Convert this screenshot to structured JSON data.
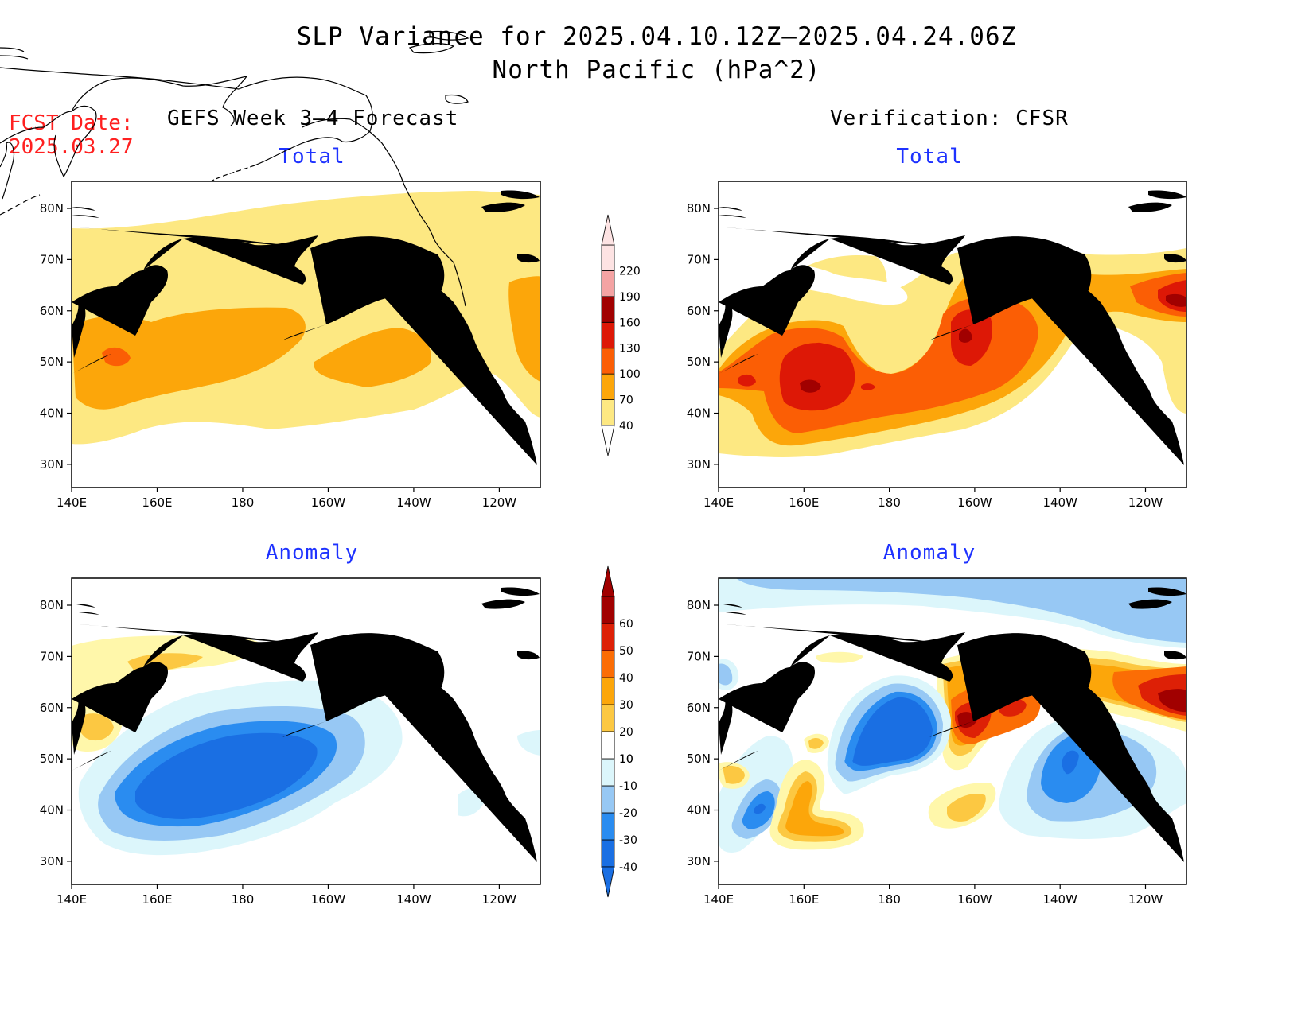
{
  "header": {
    "title_line1": "SLP Variance for 2025.04.10.12Z–2025.04.24.06Z",
    "title_line2": "North Pacific (hPa^2)",
    "fcst_label": "FCST Date:",
    "fcst_date": "2025.03.27",
    "left_column": "GEFS Week 3–4 Forecast",
    "right_column": "Verification: CFSR"
  },
  "panels": {
    "fcst_total_title": "Total",
    "fcst_anom_title": "Anomaly",
    "verif_total_title": "Total",
    "verif_anom_title": "Anomaly"
  },
  "axes": {
    "x_ticks": [
      "140E",
      "160E",
      "180",
      "160W",
      "140W",
      "120W"
    ],
    "y_ticks": [
      "80N",
      "70N",
      "60N",
      "50N",
      "40N",
      "30N"
    ]
  },
  "colors": {
    "total": {
      "40": "#fde882",
      "70": "#fca60a",
      "100": "#fb5e05",
      "130": "#dd1806",
      "160": "#a10000",
      "190": "#f4a3a3",
      "220": "#fde3e3"
    },
    "anomaly": {
      "-40": "#1a6fe3",
      "-30": "#2a8cf0",
      "-20": "#97c8f4",
      "-10": "#dcf6fb",
      "10": "#fff7aa",
      "20": "#fcc842",
      "30": "#fca60a",
      "40": "#fb6d05",
      "50": "#dd2006",
      "60": "#a10000"
    }
  },
  "chart_data": [
    {
      "type": "heatmap",
      "title": "Total",
      "panel": "GEFS Week 3–4 Forecast",
      "x_range": [
        "140E",
        "110W"
      ],
      "y_range": [
        "25N",
        "85N"
      ],
      "regions": [
        {
          "level": 40,
          "center": [
            "170E",
            "55N"
          ],
          "note": "broad basin-wide field"
        },
        {
          "level": 70,
          "center": [
            "170E",
            "50N"
          ]
        },
        {
          "level": 70,
          "center": [
            "150W",
            "50N"
          ]
        },
        {
          "level": 100,
          "center": [
            "149E",
            "50N"
          ]
        }
      ]
    },
    {
      "type": "heatmap",
      "title": "Anomaly",
      "panel": "GEFS Week 3–4 Forecast",
      "x_range": [
        "140E",
        "110W"
      ],
      "y_range": [
        "25N",
        "85N"
      ],
      "regions": [
        {
          "level": -40,
          "center": [
            "175E",
            "46N"
          ]
        },
        {
          "level": 20,
          "center": [
            "144E",
            "56N"
          ]
        },
        {
          "level": 10,
          "center": [
            "160E",
            "70N"
          ]
        }
      ]
    },
    {
      "type": "heatmap",
      "title": "Total",
      "panel": "Verification: CFSR",
      "x_range": [
        "140E",
        "110W"
      ],
      "y_range": [
        "25N",
        "85N"
      ],
      "regions": [
        {
          "level": 160,
          "center": [
            "160E",
            "45N"
          ]
        },
        {
          "level": 160,
          "center": [
            "160W",
            "55N"
          ]
        },
        {
          "level": 160,
          "center": [
            "113W",
            "61N"
          ]
        },
        {
          "level": 130,
          "center": [
            "165E",
            "48N"
          ]
        },
        {
          "level": 100,
          "center": [
            "170W",
            "50N"
          ]
        }
      ]
    },
    {
      "type": "heatmap",
      "title": "Anomaly",
      "panel": "Verification: CFSR",
      "x_range": [
        "140E",
        "110W"
      ],
      "y_range": [
        "25N",
        "85N"
      ],
      "regions": [
        {
          "level": 60,
          "center": [
            "162W",
            "56N"
          ]
        },
        {
          "level": 60,
          "center": [
            "113W",
            "60N"
          ]
        },
        {
          "level": -40,
          "center": [
            "177E",
            "53N"
          ]
        },
        {
          "level": -40,
          "center": [
            "137W",
            "48N"
          ]
        },
        {
          "level": -30,
          "center": [
            "149E",
            "40N"
          ]
        },
        {
          "level": 30,
          "center": [
            "160E",
            "37N"
          ]
        },
        {
          "level": -20,
          "center": [
            "170W",
            "83N"
          ]
        }
      ]
    }
  ],
  "colorbars": {
    "total_labels": [
      "40",
      "70",
      "100",
      "130",
      "160",
      "190",
      "220"
    ],
    "anomaly_labels": [
      "-40",
      "-30",
      "-20",
      "-10",
      "10",
      "20",
      "30",
      "40",
      "50",
      "60"
    ]
  }
}
